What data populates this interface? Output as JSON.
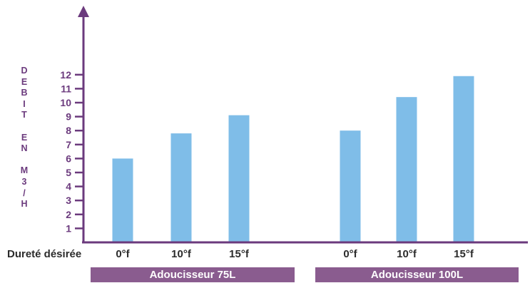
{
  "chart_data": {
    "type": "bar",
    "ylabel_letters": [
      "D",
      "E",
      "B",
      "I",
      "T",
      "",
      "E",
      "N",
      "",
      "M",
      "3",
      "/",
      "H"
    ],
    "xaxis_title": "Dureté désirée",
    "yticks": [
      1,
      2,
      3,
      4,
      5,
      6,
      7,
      8,
      9,
      10,
      11,
      12
    ],
    "ylim": [
      0,
      12.5
    ],
    "groups": [
      {
        "name": "Adoucisseur 75L",
        "categories": [
          "0°f",
          "10°f",
          "15°f"
        ],
        "values": [
          6,
          7.8,
          9.1
        ]
      },
      {
        "name": "Adoucisseur 100L",
        "categories": [
          "0°f",
          "10°f",
          "15°f"
        ],
        "values": [
          8,
          10.4,
          11.9
        ]
      }
    ],
    "colors": {
      "bar": "#7fbde8",
      "axis": "#6b3a7d",
      "banner": "#8a5c8f"
    }
  }
}
